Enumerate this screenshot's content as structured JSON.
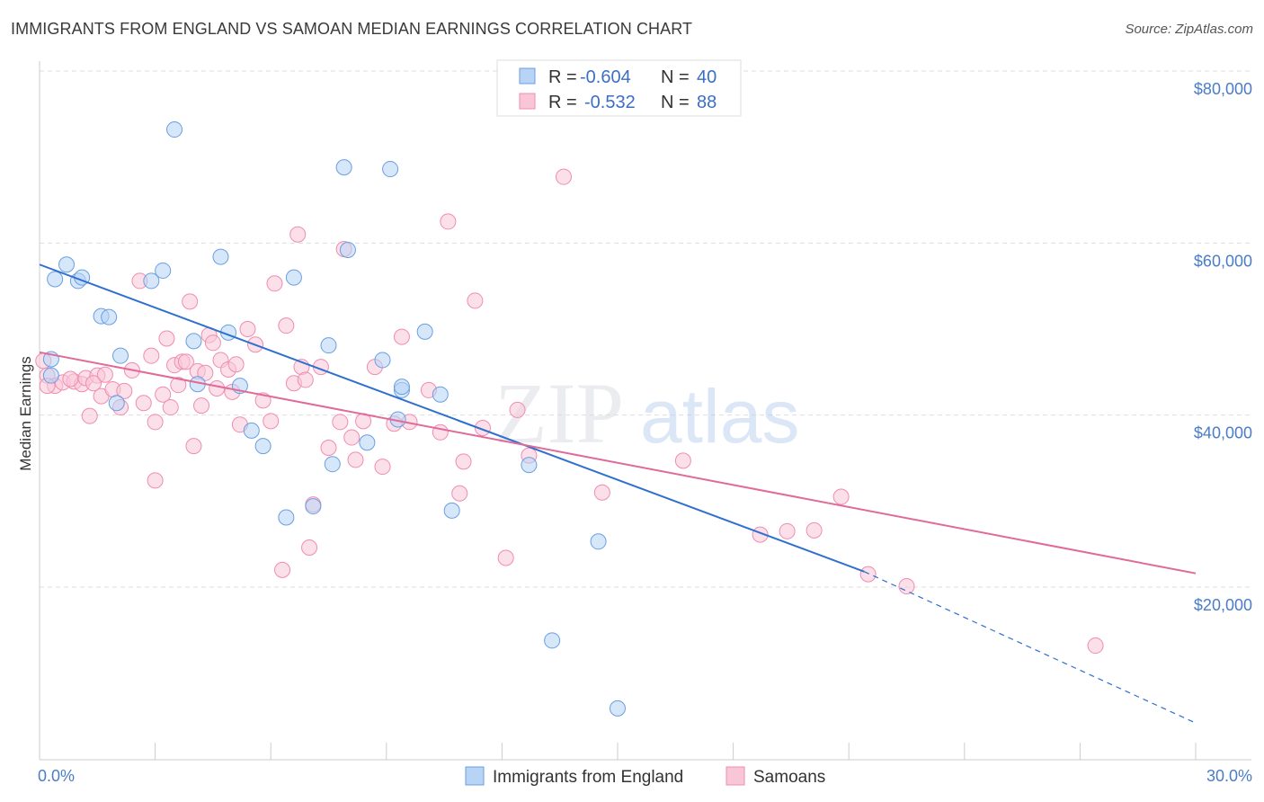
{
  "header": {
    "title": "IMMIGRANTS FROM ENGLAND VS SAMOAN MEDIAN EARNINGS CORRELATION CHART",
    "source": "Source: ZipAtlas.com"
  },
  "watermark": {
    "zip": "ZIP",
    "atlas": "atlas"
  },
  "legend_top": [
    {
      "r_label": "R = ",
      "r_value": "-0.604",
      "n_label": "N = ",
      "n_value": "40"
    },
    {
      "r_label": "R = ",
      "r_value": "-0.532",
      "n_label": "N = ",
      "n_value": "88"
    }
  ],
  "chart_data": {
    "type": "scatter",
    "ylabel": "Median Earnings",
    "xlim": [
      0,
      30
    ],
    "ylim": [
      0,
      80000
    ],
    "x_tick_labels": [
      "0.0%",
      "30.0%"
    ],
    "y_tick_labels": [
      "$80,000",
      "$60,000",
      "$40,000",
      "$20,000"
    ],
    "y_ticks": [
      80000,
      60000,
      40000,
      20000
    ],
    "grid": true,
    "legend_placement": "bottom-center",
    "colors": {
      "england": "#6a9fe0",
      "samoan": "#f08cb0",
      "england_line": "#2f6fd0",
      "samoan_line": "#e06a98"
    },
    "series": [
      {
        "name": "Immigrants from England",
        "points": [
          [
            0.3,
            46500
          ],
          [
            0.3,
            44600
          ],
          [
            0.4,
            55800
          ],
          [
            0.7,
            57500
          ],
          [
            1.0,
            55600
          ],
          [
            1.1,
            56000
          ],
          [
            1.6,
            51500
          ],
          [
            1.8,
            51400
          ],
          [
            2.1,
            46900
          ],
          [
            2.0,
            41400
          ],
          [
            2.9,
            55600
          ],
          [
            3.2,
            56800
          ],
          [
            3.5,
            73200
          ],
          [
            4.0,
            48600
          ],
          [
            4.1,
            43600
          ],
          [
            4.7,
            58400
          ],
          [
            4.9,
            49600
          ],
          [
            5.2,
            43400
          ],
          [
            5.5,
            38200
          ],
          [
            5.8,
            36400
          ],
          [
            6.4,
            28100
          ],
          [
            6.6,
            56000
          ],
          [
            7.1,
            29400
          ],
          [
            7.5,
            48100
          ],
          [
            7.6,
            34300
          ],
          [
            7.9,
            68800
          ],
          [
            8.0,
            59200
          ],
          [
            8.5,
            36800
          ],
          [
            8.9,
            46400
          ],
          [
            9.1,
            68600
          ],
          [
            9.3,
            39500
          ],
          [
            9.4,
            42900
          ],
          [
            9.4,
            43300
          ],
          [
            10.0,
            49700
          ],
          [
            10.4,
            42400
          ],
          [
            10.7,
            28900
          ],
          [
            12.7,
            34200
          ],
          [
            13.3,
            13800
          ],
          [
            14.5,
            25300
          ],
          [
            15.0,
            5900
          ]
        ],
        "trend": {
          "x": [
            0,
            21.4
          ],
          "y": [
            57500,
            21800
          ],
          "dashed_to": {
            "x": [
              21.4,
              30
            ],
            "y": [
              21800,
              4200
            ]
          }
        }
      },
      {
        "name": "Samoans",
        "points": [
          [
            0.1,
            46300
          ],
          [
            0.2,
            44600
          ],
          [
            0.4,
            43400
          ],
          [
            0.6,
            43800
          ],
          [
            0.9,
            43900
          ],
          [
            1.1,
            43600
          ],
          [
            1.2,
            44300
          ],
          [
            1.3,
            39900
          ],
          [
            1.5,
            44600
          ],
          [
            1.6,
            42200
          ],
          [
            1.9,
            43000
          ],
          [
            2.1,
            40900
          ],
          [
            2.4,
            45200
          ],
          [
            2.6,
            55600
          ],
          [
            2.7,
            41400
          ],
          [
            2.9,
            46900
          ],
          [
            3.0,
            39200
          ],
          [
            3.0,
            32400
          ],
          [
            3.2,
            42400
          ],
          [
            3.3,
            48900
          ],
          [
            3.4,
            40900
          ],
          [
            3.5,
            45800
          ],
          [
            3.7,
            46200
          ],
          [
            3.8,
            46200
          ],
          [
            3.9,
            53200
          ],
          [
            4.0,
            36400
          ],
          [
            4.1,
            45100
          ],
          [
            4.2,
            41100
          ],
          [
            4.3,
            44900
          ],
          [
            4.4,
            49300
          ],
          [
            4.5,
            48400
          ],
          [
            4.6,
            43100
          ],
          [
            4.7,
            46400
          ],
          [
            4.9,
            45300
          ],
          [
            5.0,
            42700
          ],
          [
            5.2,
            38900
          ],
          [
            5.4,
            50000
          ],
          [
            5.6,
            48200
          ],
          [
            5.8,
            41700
          ],
          [
            6.0,
            39300
          ],
          [
            6.1,
            55300
          ],
          [
            6.3,
            22000
          ],
          [
            6.4,
            50400
          ],
          [
            6.6,
            43700
          ],
          [
            6.7,
            61000
          ],
          [
            6.8,
            45600
          ],
          [
            7.0,
            24600
          ],
          [
            7.1,
            29600
          ],
          [
            7.3,
            45600
          ],
          [
            7.5,
            36200
          ],
          [
            7.8,
            39200
          ],
          [
            7.9,
            59300
          ],
          [
            8.1,
            37400
          ],
          [
            8.2,
            34800
          ],
          [
            8.4,
            39300
          ],
          [
            8.7,
            45600
          ],
          [
            8.9,
            34000
          ],
          [
            9.2,
            39000
          ],
          [
            9.4,
            49100
          ],
          [
            9.6,
            39200
          ],
          [
            10.1,
            42900
          ],
          [
            10.4,
            38000
          ],
          [
            10.6,
            62500
          ],
          [
            10.9,
            30900
          ],
          [
            11.0,
            34600
          ],
          [
            11.3,
            53300
          ],
          [
            11.5,
            38500
          ],
          [
            12.1,
            23400
          ],
          [
            12.4,
            40600
          ],
          [
            12.7,
            35300
          ],
          [
            13.6,
            67700
          ],
          [
            14.6,
            31000
          ],
          [
            16.7,
            34700
          ],
          [
            18.7,
            26100
          ],
          [
            19.4,
            26500
          ],
          [
            20.1,
            26600
          ],
          [
            20.8,
            30500
          ],
          [
            21.5,
            21500
          ],
          [
            22.5,
            20100
          ],
          [
            27.4,
            13200
          ],
          [
            0.2,
            43400
          ],
          [
            0.8,
            44200
          ],
          [
            1.4,
            43700
          ],
          [
            1.7,
            44700
          ],
          [
            2.2,
            42800
          ],
          [
            3.6,
            43500
          ],
          [
            5.1,
            45900
          ],
          [
            6.9,
            44100
          ]
        ],
        "trend": {
          "x": [
            0,
            30
          ],
          "y": [
            47300,
            21600
          ]
        }
      }
    ]
  },
  "bottom_legend": [
    {
      "label": "Immigrants from England"
    },
    {
      "label": "Samoans"
    }
  ]
}
